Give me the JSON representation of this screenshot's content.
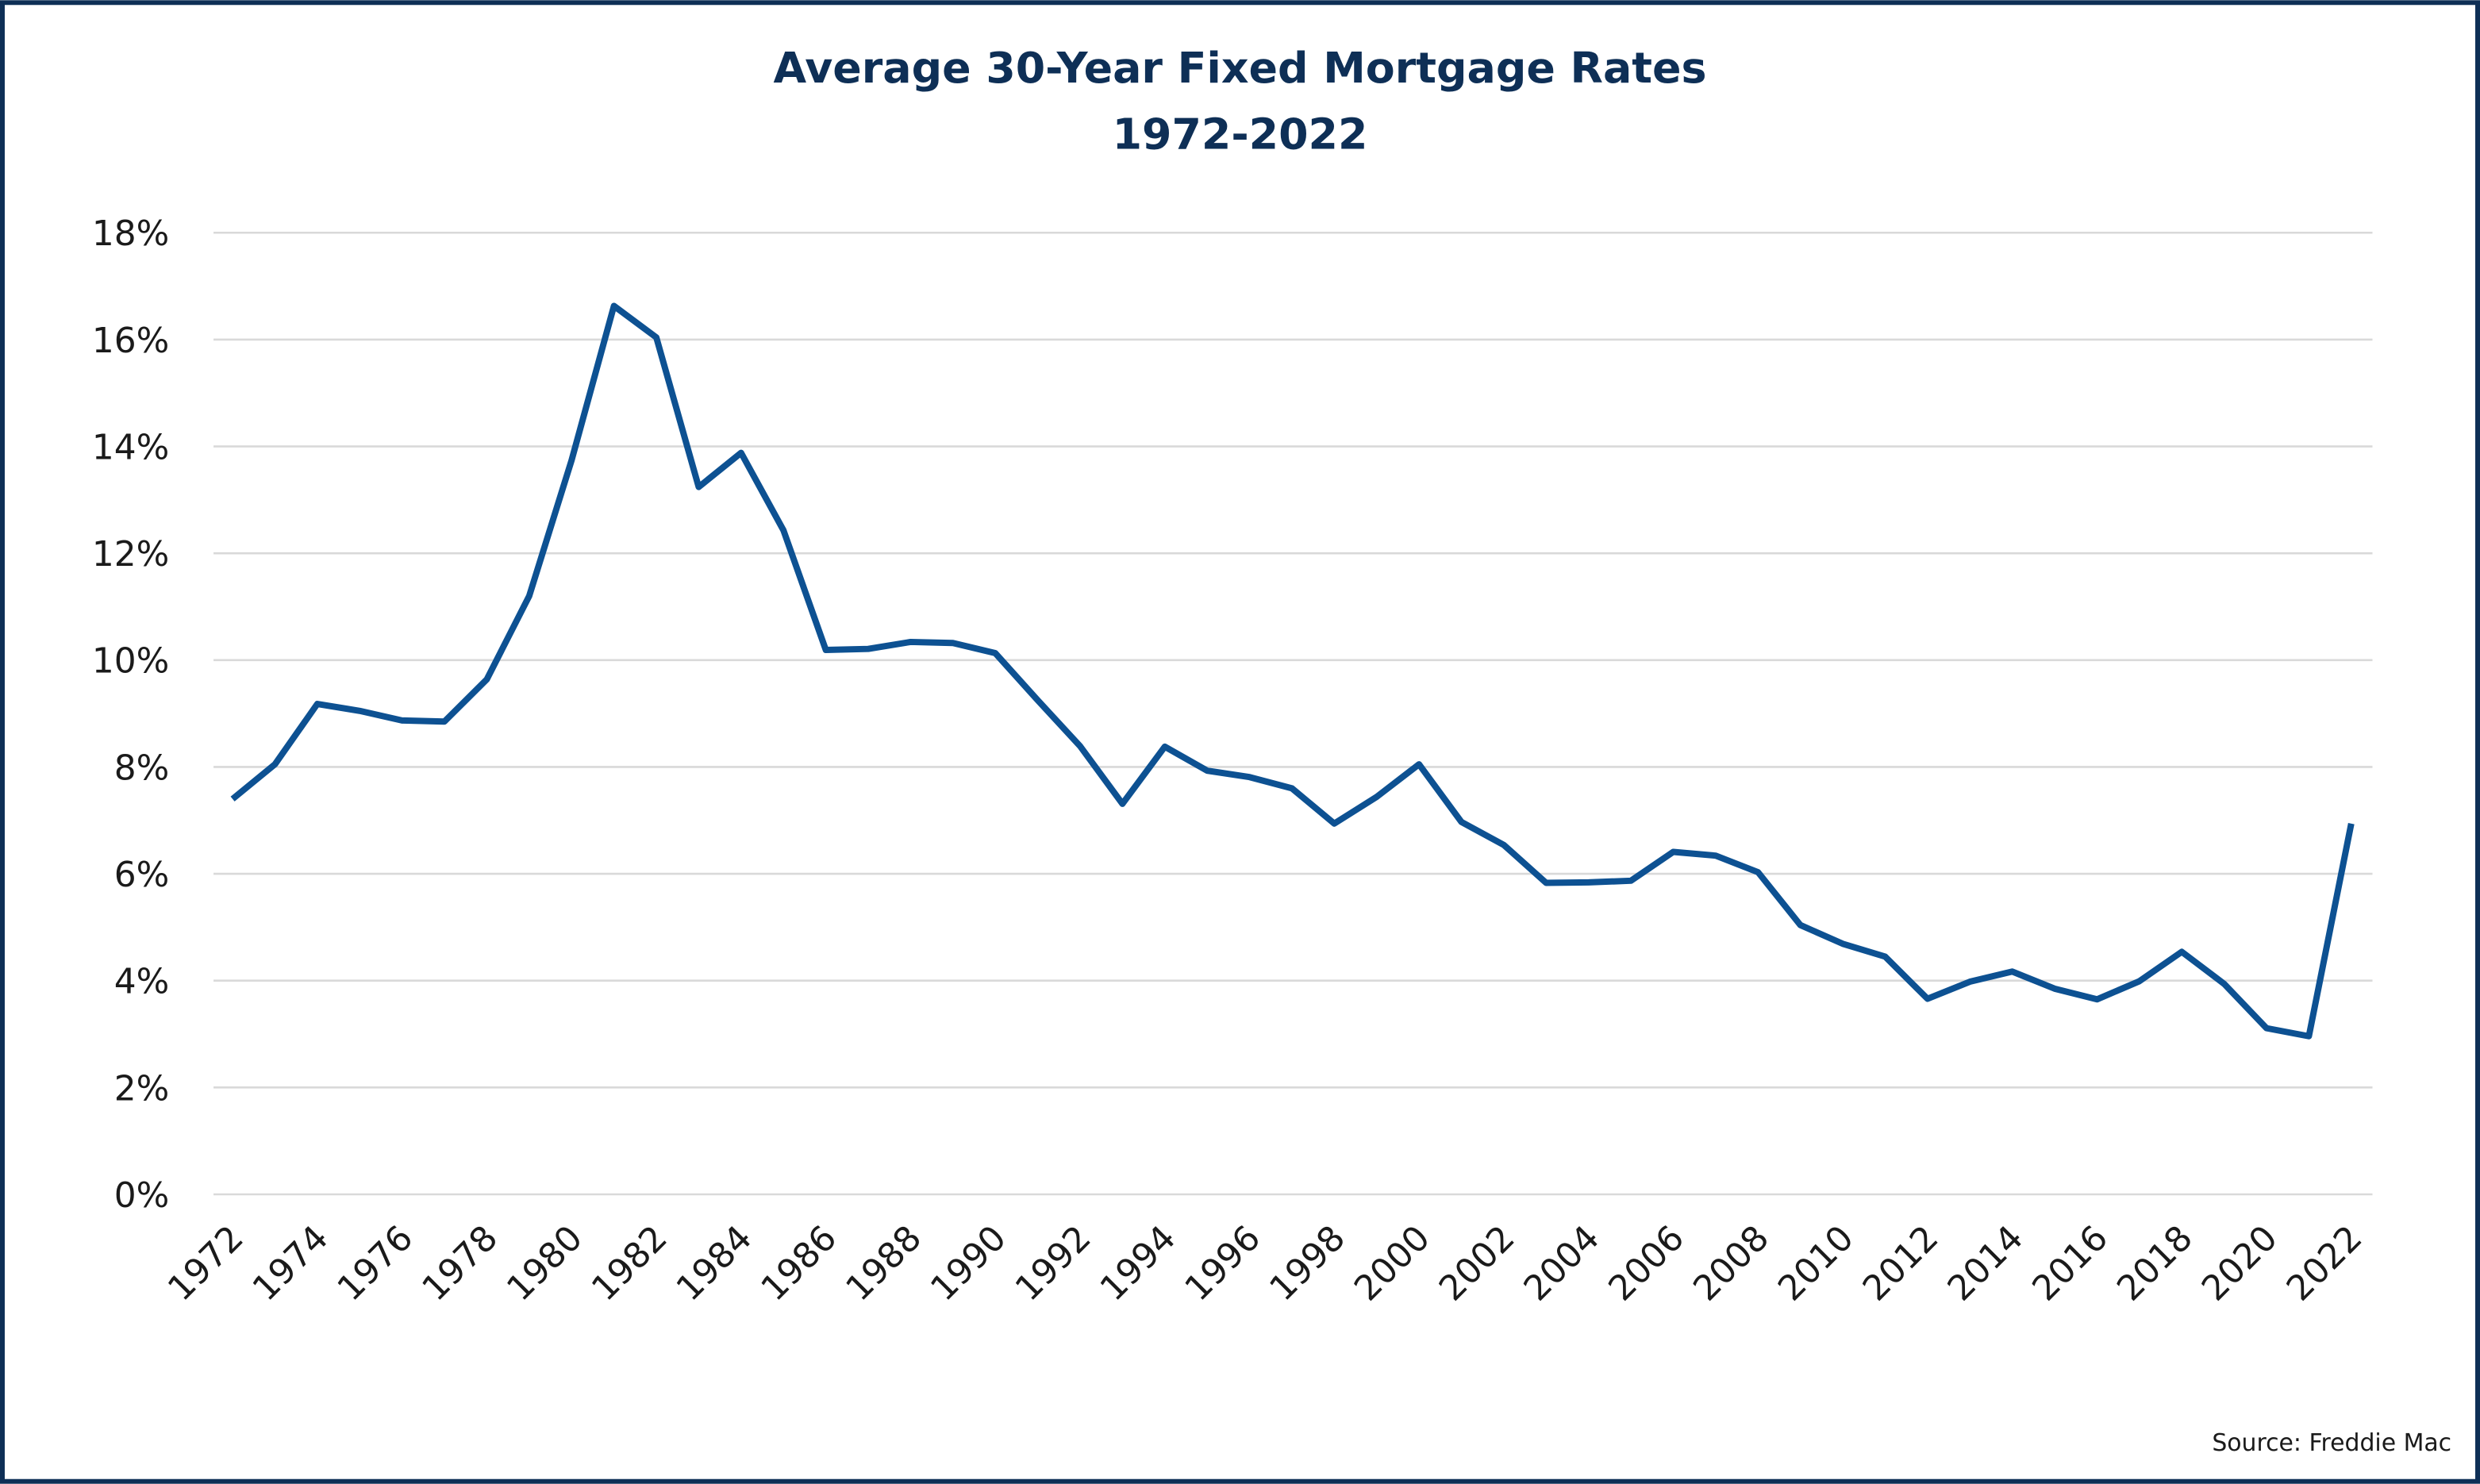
{
  "chart_data": {
    "type": "line",
    "title": "Average 30-Year Fixed Mortgage Rates",
    "subtitle": "1972-2022",
    "source": "Source: Freddie Mac",
    "x": [
      1972,
      1973,
      1974,
      1975,
      1976,
      1977,
      1978,
      1979,
      1980,
      1981,
      1982,
      1983,
      1984,
      1985,
      1986,
      1987,
      1988,
      1989,
      1990,
      1991,
      1992,
      1993,
      1994,
      1995,
      1996,
      1997,
      1998,
      1999,
      2000,
      2001,
      2002,
      2003,
      2004,
      2005,
      2006,
      2007,
      2008,
      2009,
      2010,
      2011,
      2012,
      2013,
      2014,
      2015,
      2016,
      2017,
      2018,
      2019,
      2020,
      2021,
      2022
    ],
    "values": [
      7.4,
      8.05,
      9.18,
      9.05,
      8.87,
      8.85,
      9.64,
      11.2,
      13.74,
      16.63,
      16.04,
      13.24,
      13.88,
      12.43,
      10.19,
      10.21,
      10.34,
      10.32,
      10.13,
      9.25,
      8.39,
      7.31,
      8.38,
      7.93,
      7.81,
      7.6,
      6.94,
      7.44,
      8.05,
      6.97,
      6.54,
      5.83,
      5.84,
      5.87,
      6.41,
      6.34,
      6.03,
      5.04,
      4.69,
      4.45,
      3.66,
      3.98,
      4.17,
      3.85,
      3.65,
      3.99,
      4.54,
      3.94,
      3.11,
      2.96,
      6.94
    ],
    "color": "#0d5192",
    "xlim": [
      1971.55,
      2022.5
    ],
    "xticks": [
      1972,
      1974,
      1976,
      1978,
      1980,
      1982,
      1984,
      1986,
      1988,
      1990,
      1992,
      1994,
      1996,
      1998,
      2000,
      2002,
      2004,
      2006,
      2008,
      2010,
      2012,
      2014,
      2016,
      2018,
      2020,
      2022
    ],
    "ylim": [
      0,
      18
    ],
    "yticks": [
      {
        "value": 0,
        "label": "0%"
      },
      {
        "value": 2,
        "label": "2%"
      },
      {
        "value": 4,
        "label": "4%"
      },
      {
        "value": 6,
        "label": "6%"
      },
      {
        "value": 8,
        "label": "8%"
      },
      {
        "value": 10,
        "label": "10%"
      },
      {
        "value": 12,
        "label": "12%"
      },
      {
        "value": 14,
        "label": "14%"
      },
      {
        "value": 16,
        "label": "16%"
      },
      {
        "value": 18,
        "label": "18%"
      }
    ],
    "grid": true
  }
}
